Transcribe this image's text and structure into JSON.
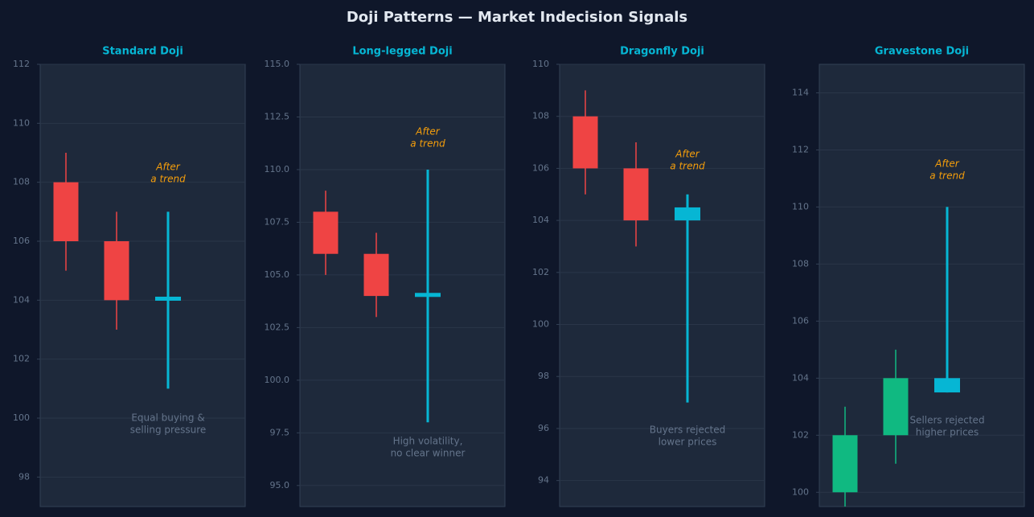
{
  "title": "Doji Patterns — Market Indecision Signals",
  "chart_data": [
    {
      "type": "candlestick",
      "title": "Standard Doji",
      "open": [
        108,
        106,
        104
      ],
      "close": [
        106,
        104,
        104.1
      ],
      "high": [
        109,
        107,
        107
      ],
      "low": [
        105,
        103,
        101
      ],
      "colors": [
        "#ef4444",
        "#ef4444",
        "#06b6d4"
      ],
      "ylim": [
        97,
        112
      ],
      "yticks": [
        98,
        100,
        102,
        104,
        106,
        108,
        110,
        112
      ],
      "grid": true,
      "annotations": [
        {
          "lines": [
            "After",
            "a trend"
          ],
          "y": 108.3,
          "color": "#f59e0b",
          "italic": true
        },
        {
          "lines": [
            "Equal buying &",
            "selling pressure"
          ],
          "y": 99.8,
          "color": "#64748b",
          "italic": false
        }
      ]
    },
    {
      "type": "candlestick",
      "title": "Long-legged Doji",
      "open": [
        108,
        106,
        104
      ],
      "close": [
        106,
        104,
        104.1
      ],
      "high": [
        109,
        107,
        110
      ],
      "low": [
        105,
        103,
        98
      ],
      "colors": [
        "#ef4444",
        "#ef4444",
        "#06b6d4"
      ],
      "ylim": [
        94,
        115
      ],
      "yticks": [
        {
          "value": 95,
          "label": "95.0"
        },
        {
          "value": 97.5,
          "label": "97.5"
        },
        {
          "value": 100,
          "label": "100.0"
        },
        {
          "value": 102.5,
          "label": "102.5"
        },
        {
          "value": 105,
          "label": "105.0"
        },
        {
          "value": 107.5,
          "label": "107.5"
        },
        {
          "value": 110,
          "label": "110.0"
        },
        {
          "value": 112.5,
          "label": "112.5"
        },
        {
          "value": 115,
          "label": "115.0"
        }
      ],
      "grid": true,
      "annotations": [
        {
          "lines": [
            "After",
            "a trend"
          ],
          "y": 111.5,
          "color": "#f59e0b",
          "italic": true
        },
        {
          "lines": [
            "High volatility,",
            "no clear winner"
          ],
          "y": 96.8,
          "color": "#64748b",
          "italic": false
        }
      ]
    },
    {
      "type": "candlestick",
      "title": "Dragonfly Doji",
      "open": [
        108,
        106,
        104.5
      ],
      "close": [
        106,
        104,
        104
      ],
      "high": [
        109,
        107,
        105
      ],
      "low": [
        105,
        103,
        97
      ],
      "colors": [
        "#ef4444",
        "#ef4444",
        "#06b6d4"
      ],
      "ylim": [
        93,
        110
      ],
      "yticks": [
        94,
        96,
        98,
        100,
        102,
        104,
        106,
        108,
        110
      ],
      "grid": true,
      "annotations": [
        {
          "lines": [
            "After",
            "a trend"
          ],
          "y": 106.3,
          "color": "#f59e0b",
          "italic": true
        },
        {
          "lines": [
            "Buyers rejected",
            "lower prices"
          ],
          "y": 95.7,
          "color": "#64748b",
          "italic": false
        }
      ]
    },
    {
      "type": "candlestick",
      "title": "Gravestone Doji",
      "open": [
        100,
        102,
        103.5
      ],
      "close": [
        102,
        104,
        104
      ],
      "high": [
        103,
        105,
        110
      ],
      "low": [
        99.5,
        101,
        103.5
      ],
      "colors": [
        "#10b981",
        "#10b981",
        "#06b6d4"
      ],
      "ylim": [
        99.5,
        115
      ],
      "yticks": [
        100,
        102,
        104,
        106,
        108,
        110,
        112,
        114
      ],
      "grid": true,
      "annotations": [
        {
          "lines": [
            "After",
            "a trend"
          ],
          "y": 111.3,
          "color": "#f59e0b",
          "italic": true
        },
        {
          "lines": [
            "Sellers rejected",
            "higher prices"
          ],
          "y": 102.3,
          "color": "#64748b",
          "italic": false
        }
      ]
    }
  ]
}
